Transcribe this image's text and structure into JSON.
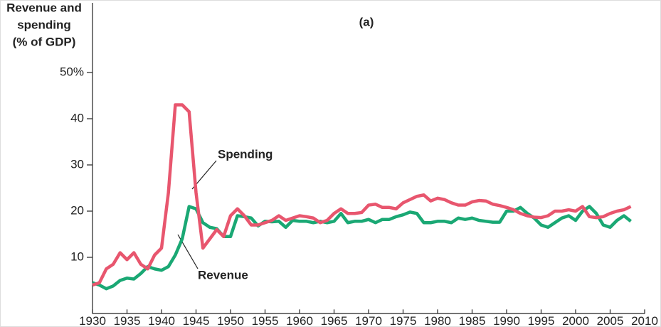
{
  "chart_data": {
    "type": "line",
    "title": "(a)",
    "ylabel": [
      "Revenue and",
      "spending",
      "(% of GDP)"
    ],
    "annotations": [
      "Spending",
      "Revenue"
    ],
    "x": [
      1930,
      1931,
      1932,
      1933,
      1934,
      1935,
      1936,
      1937,
      1938,
      1939,
      1940,
      1941,
      1942,
      1943,
      1944,
      1945,
      1946,
      1947,
      1948,
      1949,
      1950,
      1951,
      1952,
      1953,
      1954,
      1955,
      1956,
      1957,
      1958,
      1959,
      1960,
      1961,
      1962,
      1963,
      1964,
      1965,
      1966,
      1967,
      1968,
      1969,
      1970,
      1971,
      1972,
      1973,
      1974,
      1975,
      1976,
      1977,
      1978,
      1979,
      1980,
      1981,
      1982,
      1983,
      1984,
      1985,
      1986,
      1987,
      1988,
      1989,
      1990,
      1991,
      1992,
      1993,
      1994,
      1995,
      1996,
      1997,
      1998,
      1999,
      2000,
      2001,
      2002,
      2003,
      2004,
      2005,
      2006,
      2007,
      2008
    ],
    "series": [
      {
        "name": "Spending",
        "color": "#e8566e",
        "values": [
          4,
          4.5,
          7.5,
          8.5,
          11,
          9.5,
          11,
          8.5,
          7.5,
          10.5,
          12,
          24,
          43,
          43,
          41.5,
          24,
          12,
          14,
          16,
          14.5,
          19,
          20.5,
          19,
          17,
          17,
          17.5,
          18,
          19,
          18,
          18.5,
          19,
          18.8,
          18.5,
          17.5,
          18,
          19.5,
          20.5,
          19.5,
          19.5,
          19.7,
          21.3,
          21.5,
          20.8,
          20.8,
          20.5,
          21.8,
          22.5,
          23.2,
          23.5,
          22.2,
          22.8,
          22.5,
          21.8,
          21.3,
          21.3,
          22,
          22.3,
          22.2,
          21.5,
          21.2,
          20.8,
          20.3,
          19.5,
          19,
          18.7,
          18.6,
          19,
          20,
          20,
          20.3,
          20,
          21,
          18.8,
          18.6,
          18.8,
          19.5,
          20,
          20.3,
          21
        ]
      },
      {
        "name": "Revenue",
        "color": "#1aa874",
        "values": [
          4.5,
          4,
          3.2,
          3.8,
          5,
          5.5,
          5.3,
          6.5,
          8,
          7.5,
          7.2,
          8,
          10.5,
          14,
          21,
          20.5,
          17.5,
          16.5,
          16.2,
          14.5,
          14.5,
          19,
          18.8,
          18.5,
          16.8,
          17.8,
          17.7,
          17.8,
          16.5,
          18,
          17.8,
          17.8,
          17.5,
          17.8,
          17.5,
          17.8,
          19.5,
          17.5,
          17.8,
          17.8,
          18.2,
          17.5,
          18.2,
          18.2,
          18.8,
          19.2,
          19.8,
          19.5,
          17.5,
          17.5,
          17.8,
          17.8,
          17.5,
          18.5,
          18.2,
          18.5,
          18,
          17.8,
          17.6,
          17.6,
          20,
          20,
          20.8,
          19.5,
          18.5,
          17,
          16.5,
          17.5,
          18.5,
          19,
          18,
          20,
          21,
          19.5,
          17,
          16.5,
          18,
          19,
          17.8
        ]
      }
    ],
    "xlim": [
      1930,
      2010
    ],
    "xticks": [
      1930,
      1935,
      1940,
      1945,
      1950,
      1955,
      1960,
      1965,
      1970,
      1975,
      1980,
      1985,
      1990,
      1995,
      2000,
      2005,
      2010
    ],
    "ylim": [
      -2.2,
      65
    ],
    "yticks": [
      10,
      20,
      30,
      40,
      {
        "value": 50,
        "label": "50%"
      }
    ]
  }
}
